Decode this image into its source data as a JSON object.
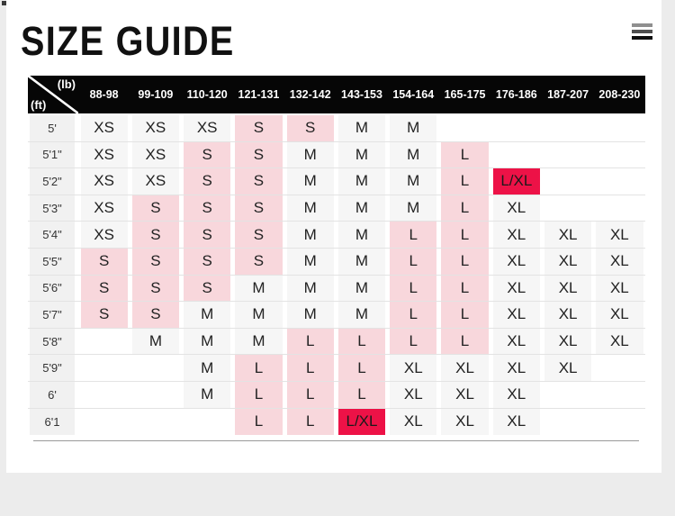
{
  "app": {
    "title": "SIZE GUIDE"
  },
  "colors": {
    "page_bg": "#ececec",
    "card_bg": "#ffffff",
    "header_bg": "#060606",
    "header_text": "#ffffff",
    "cell_bg": "#f6f6f6",
    "cell_text": "#222222",
    "highlight_bg": "#f8d7dc",
    "strong_bg": "#ed1247",
    "label_bg": "#f1f1f1",
    "row_line": "#e3e3e3",
    "bottom_rule": "#999999",
    "title_color": "#111111"
  },
  "table": {
    "corner_top_label": "(lb)",
    "corner_bottom_label": "(ft)",
    "weight_columns": [
      "88-98",
      "99-109",
      "110-120",
      "121-131",
      "132-142",
      "143-153",
      "154-164",
      "165-175",
      "176-186",
      "187-207",
      "208-230"
    ],
    "rows": [
      {
        "height": "5'",
        "cells": [
          [
            "XS",
            "n"
          ],
          [
            "XS",
            "n"
          ],
          [
            "XS",
            "n"
          ],
          [
            "S",
            "h"
          ],
          [
            "S",
            "h"
          ],
          [
            "M",
            "n"
          ],
          [
            "M",
            "n"
          ],
          [
            "",
            "e"
          ],
          [
            "",
            "e"
          ],
          [
            "",
            "e"
          ],
          [
            "",
            "e"
          ]
        ]
      },
      {
        "height": "5'1\"",
        "cells": [
          [
            "XS",
            "n"
          ],
          [
            "XS",
            "n"
          ],
          [
            "S",
            "h"
          ],
          [
            "S",
            "h"
          ],
          [
            "M",
            "n"
          ],
          [
            "M",
            "n"
          ],
          [
            "M",
            "n"
          ],
          [
            "L",
            "h"
          ],
          [
            "",
            "e"
          ],
          [
            "",
            "e"
          ],
          [
            "",
            "e"
          ]
        ]
      },
      {
        "height": "5'2\"",
        "cells": [
          [
            "XS",
            "n"
          ],
          [
            "XS",
            "n"
          ],
          [
            "S",
            "h"
          ],
          [
            "S",
            "h"
          ],
          [
            "M",
            "n"
          ],
          [
            "M",
            "n"
          ],
          [
            "M",
            "n"
          ],
          [
            "L",
            "h"
          ],
          [
            "L/XL",
            "s"
          ],
          [
            "",
            "e"
          ],
          [
            "",
            "e"
          ]
        ]
      },
      {
        "height": "5'3\"",
        "cells": [
          [
            "XS",
            "n"
          ],
          [
            "S",
            "h"
          ],
          [
            "S",
            "h"
          ],
          [
            "S",
            "h"
          ],
          [
            "M",
            "n"
          ],
          [
            "M",
            "n"
          ],
          [
            "M",
            "n"
          ],
          [
            "L",
            "h"
          ],
          [
            "XL",
            "n"
          ],
          [
            "",
            "e"
          ],
          [
            "",
            "e"
          ]
        ]
      },
      {
        "height": "5'4\"",
        "cells": [
          [
            "XS",
            "n"
          ],
          [
            "S",
            "h"
          ],
          [
            "S",
            "h"
          ],
          [
            "S",
            "h"
          ],
          [
            "M",
            "n"
          ],
          [
            "M",
            "n"
          ],
          [
            "L",
            "h"
          ],
          [
            "L",
            "h"
          ],
          [
            "XL",
            "n"
          ],
          [
            "XL",
            "n"
          ],
          [
            "XL",
            "n"
          ]
        ]
      },
      {
        "height": "5'5\"",
        "cells": [
          [
            "S",
            "h"
          ],
          [
            "S",
            "h"
          ],
          [
            "S",
            "h"
          ],
          [
            "S",
            "h"
          ],
          [
            "M",
            "n"
          ],
          [
            "M",
            "n"
          ],
          [
            "L",
            "h"
          ],
          [
            "L",
            "h"
          ],
          [
            "XL",
            "n"
          ],
          [
            "XL",
            "n"
          ],
          [
            "XL",
            "n"
          ]
        ]
      },
      {
        "height": "5'6\"",
        "cells": [
          [
            "S",
            "h"
          ],
          [
            "S",
            "h"
          ],
          [
            "S",
            "h"
          ],
          [
            "M",
            "n"
          ],
          [
            "M",
            "n"
          ],
          [
            "M",
            "n"
          ],
          [
            "L",
            "h"
          ],
          [
            "L",
            "h"
          ],
          [
            "XL",
            "n"
          ],
          [
            "XL",
            "n"
          ],
          [
            "XL",
            "n"
          ]
        ]
      },
      {
        "height": "5'7\"",
        "cells": [
          [
            "S",
            "h"
          ],
          [
            "S",
            "h"
          ],
          [
            "M",
            "n"
          ],
          [
            "M",
            "n"
          ],
          [
            "M",
            "n"
          ],
          [
            "M",
            "n"
          ],
          [
            "L",
            "h"
          ],
          [
            "L",
            "h"
          ],
          [
            "XL",
            "n"
          ],
          [
            "XL",
            "n"
          ],
          [
            "XL",
            "n"
          ]
        ]
      },
      {
        "height": "5'8\"",
        "cells": [
          [
            "",
            "e"
          ],
          [
            "M",
            "n"
          ],
          [
            "M",
            "n"
          ],
          [
            "M",
            "n"
          ],
          [
            "L",
            "h"
          ],
          [
            "L",
            "h"
          ],
          [
            "L",
            "h"
          ],
          [
            "L",
            "h"
          ],
          [
            "XL",
            "n"
          ],
          [
            "XL",
            "n"
          ],
          [
            "XL",
            "n"
          ]
        ]
      },
      {
        "height": "5'9\"",
        "cells": [
          [
            "",
            "e"
          ],
          [
            "",
            "e"
          ],
          [
            "M",
            "n"
          ],
          [
            "L",
            "h"
          ],
          [
            "L",
            "h"
          ],
          [
            "L",
            "h"
          ],
          [
            "XL",
            "n"
          ],
          [
            "XL",
            "n"
          ],
          [
            "XL",
            "n"
          ],
          [
            "XL",
            "n"
          ],
          [
            "",
            "e"
          ]
        ]
      },
      {
        "height": "6'",
        "cells": [
          [
            "",
            "e"
          ],
          [
            "",
            "e"
          ],
          [
            "M",
            "n"
          ],
          [
            "L",
            "h"
          ],
          [
            "L",
            "h"
          ],
          [
            "L",
            "h"
          ],
          [
            "XL",
            "n"
          ],
          [
            "XL",
            "n"
          ],
          [
            "XL",
            "n"
          ],
          [
            "",
            "e"
          ],
          [
            "",
            "e"
          ]
        ]
      },
      {
        "height": "6'1",
        "cells": [
          [
            "",
            "e"
          ],
          [
            "",
            "e"
          ],
          [
            "",
            "e"
          ],
          [
            "L",
            "h"
          ],
          [
            "L",
            "h"
          ],
          [
            "L/XL",
            "s"
          ],
          [
            "XL",
            "n"
          ],
          [
            "XL",
            "n"
          ],
          [
            "XL",
            "n"
          ],
          [
            "",
            "e"
          ],
          [
            "",
            "e"
          ]
        ]
      }
    ]
  }
}
